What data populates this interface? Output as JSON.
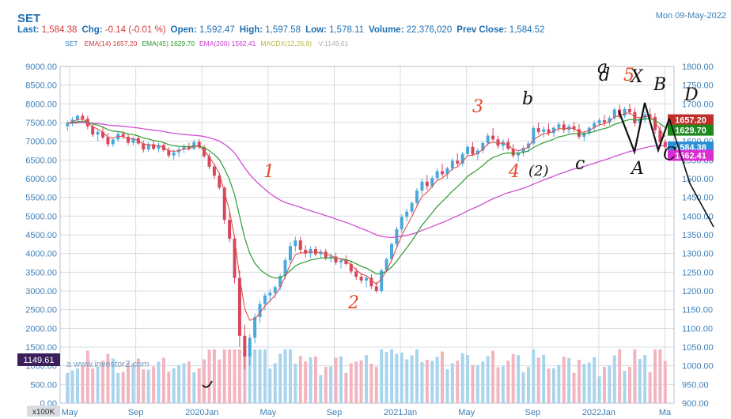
{
  "header": {
    "symbol": "SET",
    "date": "Mon 09-May-2022",
    "quote": [
      {
        "label": "Last:",
        "value": "1,584.38"
      },
      {
        "label": "Chg:",
        "value": "-0.14 (-0.01 %)"
      },
      {
        "label": "Open:",
        "value": "1,592.47"
      },
      {
        "label": "High:",
        "value": "1,597.58"
      },
      {
        "label": "Low:",
        "value": "1,578.11"
      },
      {
        "label": "Volume:",
        "value": "22,376,020"
      },
      {
        "label": "Prev Close:",
        "value": "1,584.52"
      }
    ],
    "legend": [
      {
        "name": "SET",
        "value": "",
        "color": "#3b86c4"
      },
      {
        "name": "EMA(14)",
        "value": "1657.20",
        "color": "#d23b3b"
      },
      {
        "name": "EMA(45)",
        "value": "1629.70",
        "color": "#2a9a2a"
      },
      {
        "name": "EMA(200)",
        "value": "1562.41",
        "color": "#cc3bcc"
      },
      {
        "name": "MACDX(12,26,9)",
        "value": "",
        "color": "#b8b83a"
      },
      {
        "name": "",
        "value": "V:1149.61",
        "color": "#b0b0b0"
      }
    ]
  },
  "colors": {
    "up": "#4aa8de",
    "down": "#d9455a",
    "ema14": "#d9534f",
    "ema45": "#2e9a2e",
    "ema200": "#d04fd0",
    "vol_up": "#a9d4ee",
    "vol_down": "#f2b4bf",
    "grid": "#d7dbe0",
    "axis_text": "#3f7fb5",
    "annot": "#111111",
    "annot_red": "#e04a2a"
  },
  "chart_data": {
    "type": "candlestick",
    "watermark": "a www.investorZ.com",
    "volume_label": "1149.61",
    "volume_unit": "x100K",
    "y_left": {
      "min": 0,
      "max": 9000,
      "ticks": [
        "9000.00",
        "8500.00",
        "8000.00",
        "7500.00",
        "7000.00",
        "6500.00",
        "6000.00",
        "5500.00",
        "5000.00",
        "4500.00",
        "4000.00",
        "3500.00",
        "3000.00",
        "2500.00",
        "2000.00",
        "1500.00",
        "1000.00",
        "500.00",
        "0.00"
      ]
    },
    "y_right": {
      "min": 900,
      "max": 1800,
      "ticks": [
        "1800.00",
        "1750.00",
        "1700.00",
        "1650.00",
        "1600.00",
        "1550.00",
        "1500.00",
        "1450.00",
        "1400.00",
        "1350.00",
        "1300.00",
        "1250.00",
        "1200.00",
        "1150.00",
        "1100.00",
        "1050.00",
        "1000.00",
        "950.00",
        "900.00"
      ]
    },
    "x_labels": [
      "May",
      "Sep",
      "2020Jan",
      "May",
      "Sep",
      "2021Jan",
      "May",
      "Sep",
      "2022Jan",
      "Ma"
    ],
    "price_tags": [
      {
        "label": "1657.20",
        "value": 1657.2,
        "color": "#c0302a"
      },
      {
        "label": "1629.70",
        "value": 1629.7,
        "color": "#1e8a1e"
      },
      {
        "label": "1584.38",
        "value": 1584.38,
        "color": "#2a8fd6"
      },
      {
        "label": "1562.41",
        "value": 1562.41,
        "color": "#d92fd2"
      }
    ],
    "annotations": [
      {
        "text": "1",
        "color": "#e04a2a"
      },
      {
        "text": "2",
        "color": "#e04a2a"
      },
      {
        "text": "3",
        "color": "#e04a2a"
      },
      {
        "text": "4",
        "color": "#e04a2a"
      },
      {
        "text": "(2)",
        "color": "#111111"
      },
      {
        "text": "5",
        "color": "#e04a2a"
      },
      {
        "text": "b",
        "color": "#111111"
      },
      {
        "text": "d",
        "color": "#111111"
      },
      {
        "text": "X",
        "color": "#111111"
      },
      {
        "text": "B",
        "color": "#111111"
      },
      {
        "text": "D",
        "color": "#111111"
      },
      {
        "text": "A",
        "color": "#111111"
      },
      {
        "text": "C",
        "color": "#111111"
      },
      {
        "text": "c",
        "color": "#111111"
      },
      {
        "text": "a",
        "color": "#111111"
      }
    ],
    "candles": [
      [
        1640,
        1655,
        1628,
        1648
      ],
      [
        1648,
        1665,
        1640,
        1658
      ],
      [
        1658,
        1672,
        1650,
        1668
      ],
      [
        1668,
        1675,
        1655,
        1660
      ],
      [
        1660,
        1668,
        1632,
        1640
      ],
      [
        1640,
        1645,
        1612,
        1618
      ],
      [
        1618,
        1630,
        1600,
        1625
      ],
      [
        1625,
        1638,
        1605,
        1610
      ],
      [
        1610,
        1622,
        1585,
        1592
      ],
      [
        1592,
        1610,
        1585,
        1605
      ],
      [
        1605,
        1625,
        1598,
        1620
      ],
      [
        1620,
        1628,
        1605,
        1612
      ],
      [
        1612,
        1620,
        1590,
        1596
      ],
      [
        1596,
        1612,
        1588,
        1608
      ],
      [
        1608,
        1615,
        1590,
        1594
      ],
      [
        1594,
        1602,
        1570,
        1578
      ],
      [
        1578,
        1598,
        1572,
        1592
      ],
      [
        1592,
        1600,
        1575,
        1580
      ],
      [
        1580,
        1596,
        1570,
        1590
      ],
      [
        1590,
        1598,
        1572,
        1576
      ],
      [
        1576,
        1584,
        1555,
        1562
      ],
      [
        1562,
        1578,
        1550,
        1570
      ],
      [
        1570,
        1585,
        1558,
        1578
      ],
      [
        1578,
        1592,
        1568,
        1586
      ],
      [
        1586,
        1596,
        1575,
        1580
      ],
      [
        1580,
        1604,
        1576,
        1598
      ],
      [
        1598,
        1606,
        1578,
        1584
      ],
      [
        1584,
        1590,
        1555,
        1560
      ],
      [
        1560,
        1568,
        1525,
        1532
      ],
      [
        1532,
        1540,
        1500,
        1508
      ],
      [
        1508,
        1516,
        1470,
        1476
      ],
      [
        1476,
        1480,
        1380,
        1390
      ],
      [
        1390,
        1412,
        1330,
        1340
      ],
      [
        1340,
        1348,
        1220,
        1235
      ],
      [
        1235,
        1255,
        1050,
        1080
      ],
      [
        1080,
        1110,
        990,
        1025
      ],
      [
        1025,
        1085,
        1000,
        1075
      ],
      [
        1075,
        1140,
        1060,
        1130
      ],
      [
        1130,
        1175,
        1115,
        1165
      ],
      [
        1165,
        1195,
        1148,
        1188
      ],
      [
        1188,
        1205,
        1172,
        1195
      ],
      [
        1195,
        1215,
        1180,
        1210
      ],
      [
        1210,
        1245,
        1202,
        1240
      ],
      [
        1240,
        1290,
        1232,
        1282
      ],
      [
        1282,
        1330,
        1270,
        1320
      ],
      [
        1320,
        1345,
        1305,
        1335
      ],
      [
        1335,
        1345,
        1300,
        1310
      ],
      [
        1310,
        1322,
        1290,
        1300
      ],
      [
        1300,
        1320,
        1288,
        1312
      ],
      [
        1312,
        1320,
        1292,
        1298
      ],
      [
        1298,
        1312,
        1288,
        1305
      ],
      [
        1305,
        1312,
        1282,
        1288
      ],
      [
        1288,
        1300,
        1275,
        1292
      ],
      [
        1292,
        1302,
        1270,
        1276
      ],
      [
        1276,
        1288,
        1260,
        1282
      ],
      [
        1282,
        1295,
        1268,
        1272
      ],
      [
        1272,
        1280,
        1245,
        1252
      ],
      [
        1252,
        1262,
        1230,
        1238
      ],
      [
        1238,
        1248,
        1220,
        1228
      ],
      [
        1228,
        1240,
        1210,
        1235
      ],
      [
        1235,
        1245,
        1205,
        1212
      ],
      [
        1212,
        1225,
        1195,
        1200
      ],
      [
        1200,
        1260,
        1195,
        1255
      ],
      [
        1255,
        1290,
        1250,
        1285
      ],
      [
        1285,
        1330,
        1278,
        1325
      ],
      [
        1325,
        1372,
        1318,
        1365
      ],
      [
        1365,
        1405,
        1355,
        1398
      ],
      [
        1398,
        1420,
        1385,
        1412
      ],
      [
        1412,
        1440,
        1405,
        1435
      ],
      [
        1435,
        1475,
        1428,
        1468
      ],
      [
        1468,
        1500,
        1458,
        1492
      ],
      [
        1492,
        1510,
        1470,
        1480
      ],
      [
        1480,
        1508,
        1475,
        1502
      ],
      [
        1502,
        1528,
        1495,
        1520
      ],
      [
        1520,
        1540,
        1505,
        1512
      ],
      [
        1512,
        1532,
        1500,
        1528
      ],
      [
        1528,
        1555,
        1520,
        1548
      ],
      [
        1548,
        1568,
        1535,
        1540
      ],
      [
        1540,
        1572,
        1534,
        1566
      ],
      [
        1566,
        1590,
        1560,
        1585
      ],
      [
        1585,
        1598,
        1560,
        1565
      ],
      [
        1565,
        1582,
        1550,
        1575
      ],
      [
        1575,
        1600,
        1568,
        1595
      ],
      [
        1595,
        1622,
        1588,
        1615
      ],
      [
        1615,
        1636,
        1600,
        1605
      ],
      [
        1605,
        1615,
        1580,
        1588
      ],
      [
        1588,
        1606,
        1575,
        1598
      ],
      [
        1598,
        1608,
        1575,
        1580
      ],
      [
        1580,
        1592,
        1555,
        1562
      ],
      [
        1562,
        1575,
        1545,
        1570
      ],
      [
        1570,
        1588,
        1560,
        1582
      ],
      [
        1582,
        1600,
        1570,
        1594
      ],
      [
        1594,
        1640,
        1590,
        1635
      ],
      [
        1635,
        1650,
        1618,
        1625
      ],
      [
        1625,
        1640,
        1610,
        1632
      ],
      [
        1632,
        1648,
        1615,
        1622
      ],
      [
        1622,
        1640,
        1612,
        1636
      ],
      [
        1636,
        1652,
        1625,
        1645
      ],
      [
        1645,
        1655,
        1622,
        1630
      ],
      [
        1630,
        1646,
        1620,
        1640
      ],
      [
        1640,
        1652,
        1625,
        1632
      ],
      [
        1632,
        1645,
        1605,
        1612
      ],
      [
        1612,
        1628,
        1600,
        1622
      ],
      [
        1622,
        1640,
        1615,
        1636
      ],
      [
        1636,
        1655,
        1628,
        1648
      ],
      [
        1648,
        1662,
        1640,
        1656
      ],
      [
        1656,
        1670,
        1640,
        1650
      ],
      [
        1650,
        1668,
        1642,
        1662
      ],
      [
        1662,
        1690,
        1655,
        1685
      ],
      [
        1685,
        1698,
        1660,
        1668
      ],
      [
        1668,
        1692,
        1662,
        1686
      ],
      [
        1686,
        1700,
        1670,
        1678
      ],
      [
        1678,
        1690,
        1640,
        1648
      ],
      [
        1648,
        1665,
        1635,
        1660
      ],
      [
        1660,
        1680,
        1650,
        1672
      ],
      [
        1672,
        1688,
        1660,
        1665
      ],
      [
        1665,
        1675,
        1620,
        1630
      ],
      [
        1630,
        1642,
        1590,
        1598
      ],
      [
        1598,
        1605,
        1578,
        1584
      ]
    ]
  }
}
